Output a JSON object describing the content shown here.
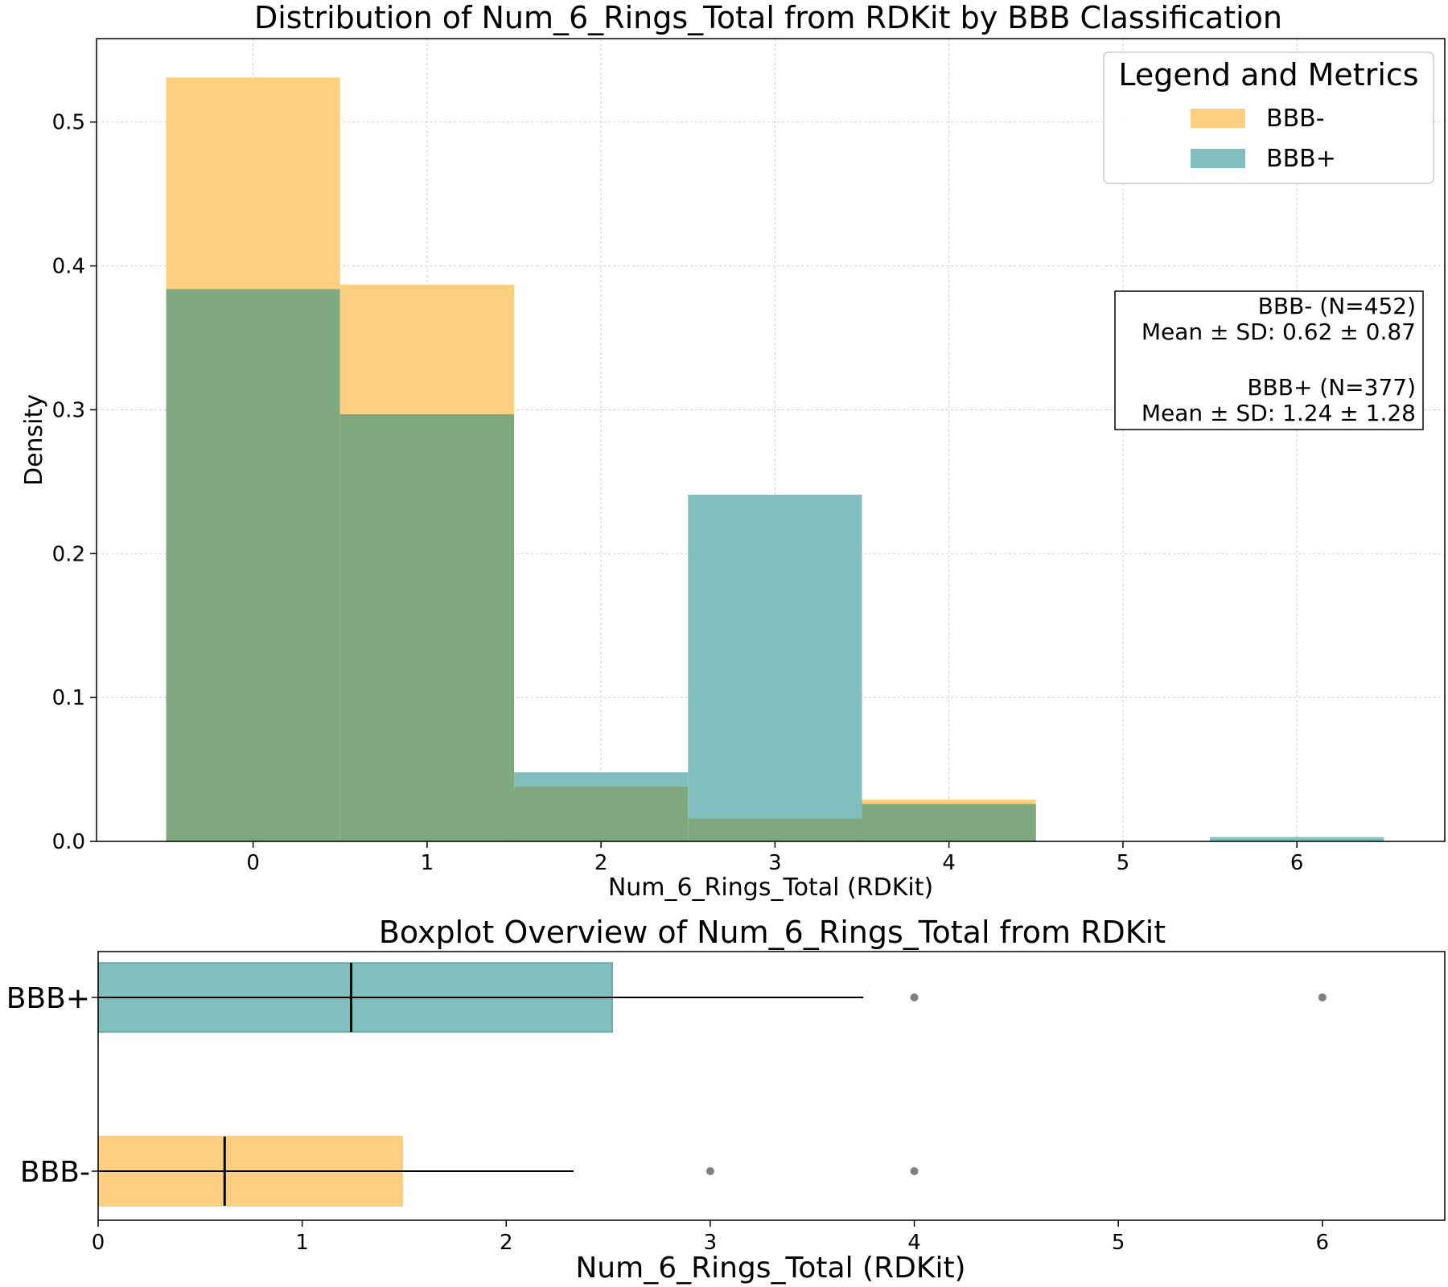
{
  "chart_data": [
    {
      "type": "histogram",
      "title": "Distribution of Num_6_Rings_Total from RDKit by BBB Classification",
      "xlabel": "Num_6_Rings_Total (RDKit)",
      "ylabel": "Density",
      "xlim": [
        -0.9,
        6.85
      ],
      "ylim": [
        0,
        0.558
      ],
      "xticks": [
        "0",
        "1",
        "2",
        "3",
        "4",
        "5",
        "6"
      ],
      "yticks": [
        "0.0",
        "0.1",
        "0.2",
        "0.3",
        "0.4",
        "0.5"
      ],
      "grid": true,
      "bins": [
        0,
        1,
        2,
        3,
        4,
        5,
        6
      ],
      "series": [
        {
          "name": "BBB-",
          "color": "#FDCF7F",
          "values": [
            0.531,
            0.387,
            0.038,
            0.016,
            0.029,
            0.0,
            0.0
          ]
        },
        {
          "name": "BBB+",
          "color": "#81BFBF",
          "values": [
            0.384,
            0.297,
            0.048,
            0.241,
            0.026,
            0.0,
            0.003
          ]
        }
      ],
      "overlap_color": "#80A87E",
      "legend": {
        "title": "Legend and Metrics",
        "position": "top-right",
        "entries": [
          "BBB-",
          "BBB+"
        ]
      },
      "metrics": [
        {
          "group": "BBB- (N=452)",
          "stat": "Mean ± SD: 0.62 ± 0.87"
        },
        {
          "group": "BBB+ (N=377)",
          "stat": "Mean ± SD: 1.24 ± 1.28"
        }
      ]
    },
    {
      "type": "boxplot",
      "title": "Boxplot Overview of Num_6_Rings_Total from RDKit",
      "xlabel": "Num_6_Rings_Total (RDKit)",
      "xlim": [
        0,
        6.6
      ],
      "xticks": [
        "0",
        "1",
        "2",
        "3",
        "4",
        "5",
        "6"
      ],
      "categories": [
        "BBB+",
        "BBB-"
      ],
      "boxes": [
        {
          "name": "BBB+",
          "color": "#81BFBF",
          "q1": 0.0,
          "median": 1.24,
          "q3": 2.52,
          "whisker_low": 0.0,
          "whisker_high": 3.75,
          "outliers": [
            4,
            6
          ]
        },
        {
          "name": "BBB-",
          "color": "#FDCF7F",
          "q1": 0.0,
          "median": 0.62,
          "q3": 1.49,
          "whisker_low": 0.0,
          "whisker_high": 2.33,
          "outliers": [
            3,
            4
          ]
        }
      ]
    }
  ]
}
